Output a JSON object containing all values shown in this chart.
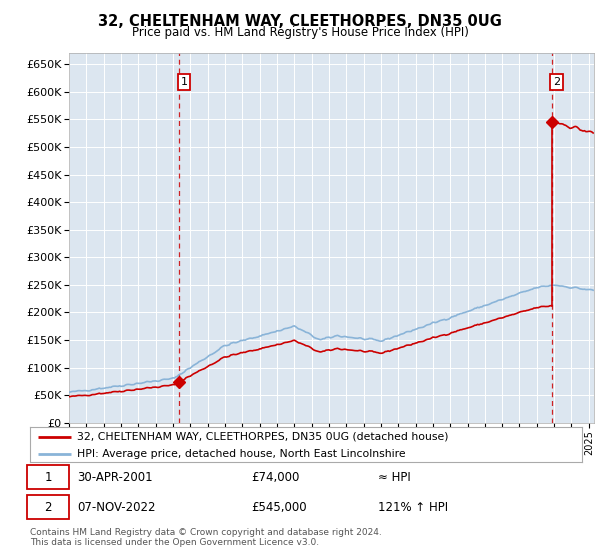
{
  "title": "32, CHELTENHAM WAY, CLEETHORPES, DN35 0UG",
  "subtitle": "Price paid vs. HM Land Registry's House Price Index (HPI)",
  "sale1_date": "30-APR-2001",
  "sale1_price": 74000,
  "sale1_x": 2001.33,
  "sale2_date": "07-NOV-2022",
  "sale2_price": 545000,
  "sale2_x": 2022.85,
  "legend_line1": "32, CHELTENHAM WAY, CLEETHORPES, DN35 0UG (detached house)",
  "legend_line2": "HPI: Average price, detached house, North East Lincolnshire",
  "footer": "Contains HM Land Registry data © Crown copyright and database right 2024.\nThis data is licensed under the Open Government Licence v3.0.",
  "hpi_color": "#8ab4d8",
  "sale_color": "#cc0000",
  "background_color": "#dce6f0",
  "ylim": [
    0,
    670000
  ],
  "xlim_start": 1995.0,
  "xlim_end": 2025.3
}
